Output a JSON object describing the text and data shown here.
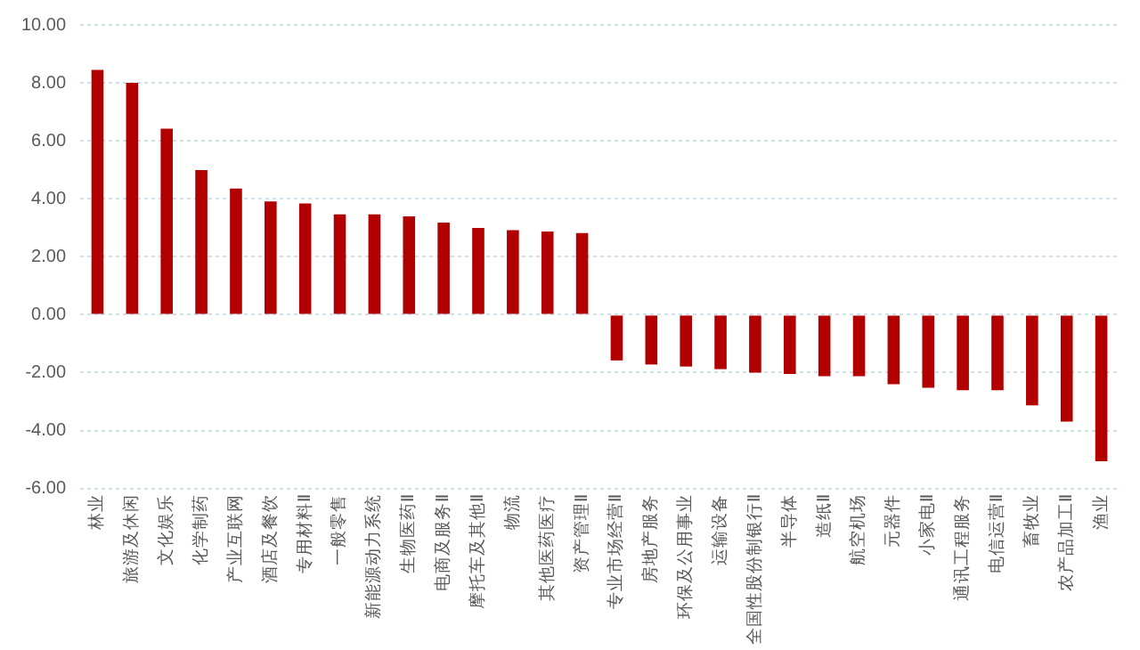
{
  "chart_data": {
    "type": "bar",
    "categories": [
      "林业",
      "旅游及休闲",
      "文化娱乐",
      "化学制药",
      "产业互联网",
      "酒店及餐饮",
      "专用材料Ⅱ",
      "一般零售",
      "新能源动力系统",
      "生物医药Ⅱ",
      "电商及服务Ⅱ",
      "摩托车及其他Ⅱ",
      "物流",
      "其他医药医疗",
      "资产管理Ⅱ",
      "专业市场经营Ⅱ",
      "房地产服务",
      "环保及公用事业",
      "运输设备",
      "全国性股份制银行Ⅱ",
      "半导体",
      "造纸Ⅱ",
      "航空机场",
      "元器件",
      "小家电Ⅱ",
      "通讯工程服务",
      "电信运营Ⅱ",
      "畜牧业",
      "农产品加工Ⅱ",
      "渔业"
    ],
    "values": [
      8.45,
      8.0,
      6.42,
      4.99,
      4.35,
      3.91,
      3.84,
      3.46,
      3.46,
      3.39,
      3.18,
      2.99,
      2.92,
      2.87,
      2.82,
      -1.58,
      -1.72,
      -1.79,
      -1.88,
      -2.0,
      -2.05,
      -2.12,
      -2.12,
      -2.4,
      -2.52,
      -2.61,
      -2.61,
      -3.13,
      -3.69,
      -5.06
    ],
    "color": "#b20000",
    "ylim": [
      -6,
      10
    ],
    "yticks": [
      {
        "value": -6,
        "label": "-6.00"
      },
      {
        "value": -4,
        "label": "-4.00"
      },
      {
        "value": -2,
        "label": "-2.00"
      },
      {
        "value": 0,
        "label": "0.00"
      },
      {
        "value": 2,
        "label": "2.00"
      },
      {
        "value": 4,
        "label": "4.00"
      },
      {
        "value": 6,
        "label": "6.00"
      },
      {
        "value": 8,
        "label": "8.00"
      },
      {
        "value": 10,
        "label": "10.00"
      }
    ],
    "grid": "y"
  }
}
